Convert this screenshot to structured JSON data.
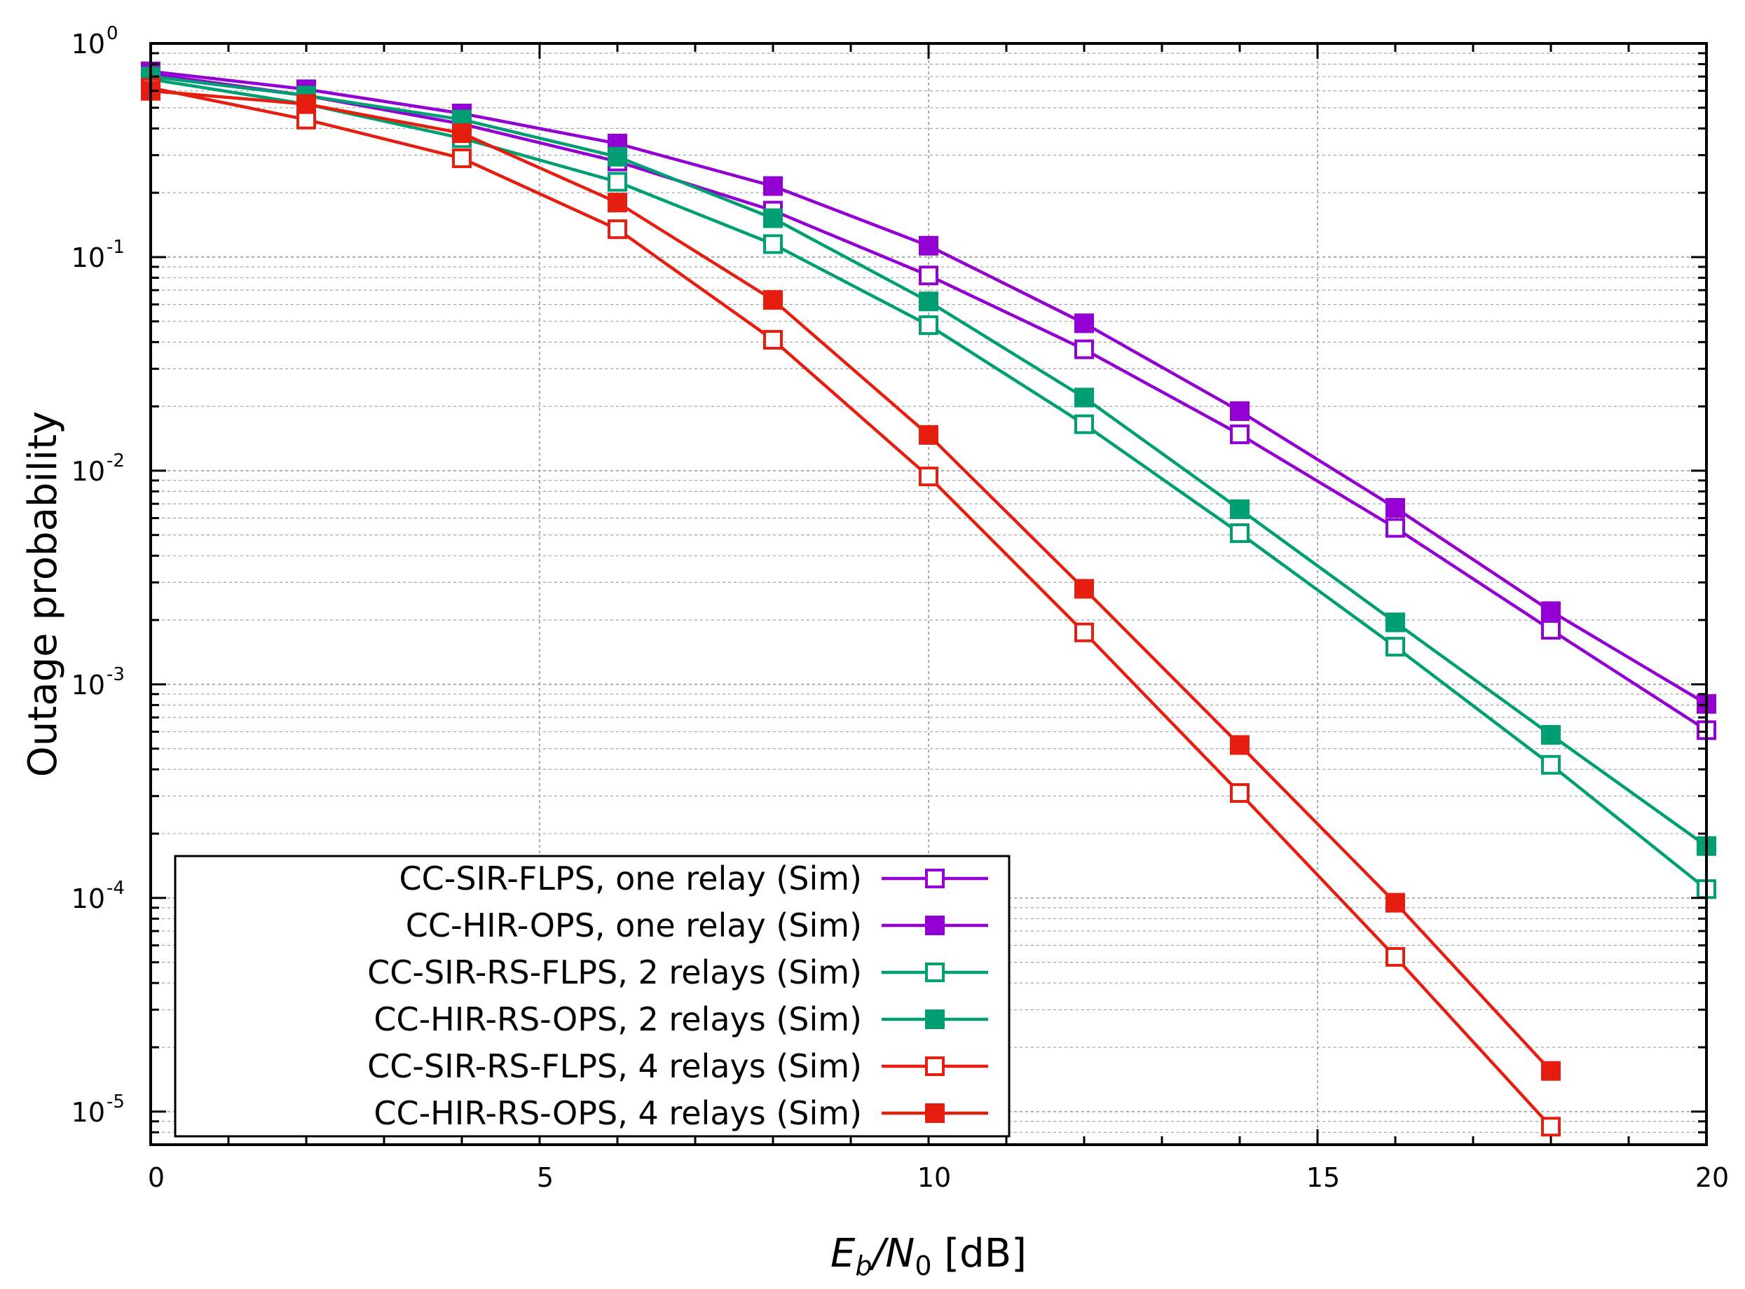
{
  "chart_data": {
    "type": "line",
    "title": "",
    "xlabel": {
      "main": "E",
      "sub_b": "b",
      "slash": "/N",
      "sub_0": "0",
      "unit": " [dB]"
    },
    "ylabel": "Outage probability",
    "xlim": [
      0,
      20
    ],
    "ylim": [
      7e-06,
      1
    ],
    "yscale": "log",
    "grid": true,
    "legend_position": "bottom-left",
    "x_ticks": [
      {
        "value": 0,
        "label": "0"
      },
      {
        "value": 5,
        "label": "5"
      },
      {
        "value": 10,
        "label": "10"
      },
      {
        "value": 15,
        "label": "15"
      },
      {
        "value": 20,
        "label": "20"
      }
    ],
    "y_ticks": [
      {
        "exp": 0,
        "base": "10",
        "sup": "0"
      },
      {
        "exp": -1,
        "base": "10",
        "sup": "-1"
      },
      {
        "exp": -2,
        "base": "10",
        "sup": "-2"
      },
      {
        "exp": -3,
        "base": "10",
        "sup": "-3"
      },
      {
        "exp": -4,
        "base": "10",
        "sup": "-4"
      },
      {
        "exp": -5,
        "base": "10",
        "sup": "-5"
      }
    ],
    "series": [
      {
        "name": "CC-SIR-FLPS, one relay (Sim)",
        "color": "#9400d3",
        "marker": "square-open",
        "x": [
          0,
          2,
          4,
          6,
          8,
          10,
          12,
          14,
          16,
          18,
          20
        ],
        "values": [
          0.72,
          0.57,
          0.42,
          0.28,
          0.165,
          0.082,
          0.037,
          0.0148,
          0.0054,
          0.0018,
          0.00061
        ]
      },
      {
        "name": "CC-HIR-OPS, one relay (Sim)",
        "color": "#9400d3",
        "marker": "square-filled",
        "x": [
          0,
          2,
          4,
          6,
          8,
          10,
          12,
          14,
          16,
          18,
          20
        ],
        "values": [
          0.74,
          0.61,
          0.47,
          0.34,
          0.215,
          0.113,
          0.049,
          0.019,
          0.0067,
          0.0022,
          0.00081
        ]
      },
      {
        "name": "CC-SIR-RS-FLPS, 2 relays (Sim)",
        "color": "#009e73",
        "marker": "square-open",
        "x": [
          0,
          2,
          4,
          6,
          8,
          10,
          12,
          14,
          16,
          18,
          20
        ],
        "values": [
          0.68,
          0.52,
          0.36,
          0.225,
          0.115,
          0.048,
          0.0165,
          0.0051,
          0.0015,
          0.00042,
          0.00011
        ]
      },
      {
        "name": "CC-HIR-RS-OPS, 2 relays (Sim)",
        "color": "#009e73",
        "marker": "square-filled",
        "x": [
          0,
          2,
          4,
          6,
          8,
          10,
          12,
          14,
          16,
          18,
          20
        ],
        "values": [
          0.7,
          0.57,
          0.44,
          0.295,
          0.152,
          0.062,
          0.022,
          0.0066,
          0.00195,
          0.00058,
          0.000175
        ]
      },
      {
        "name": "CC-SIR-RS-FLPS, 4 relays (Sim)",
        "color": "#e51e10",
        "marker": "square-open",
        "x": [
          0,
          2,
          4,
          6,
          8,
          10,
          12,
          14,
          16,
          18
        ],
        "values": [
          0.62,
          0.44,
          0.29,
          0.135,
          0.041,
          0.0094,
          0.00175,
          0.00031,
          5.3e-05,
          8.5e-06
        ]
      },
      {
        "name": "CC-HIR-RS-OPS, 4 relays (Sim)",
        "color": "#e51e10",
        "marker": "square-filled",
        "x": [
          0,
          2,
          4,
          6,
          8,
          10,
          12,
          14,
          16,
          18
        ],
        "values": [
          0.6,
          0.52,
          0.38,
          0.18,
          0.063,
          0.0147,
          0.0028,
          0.00052,
          9.5e-05,
          1.55e-05
        ]
      }
    ]
  }
}
